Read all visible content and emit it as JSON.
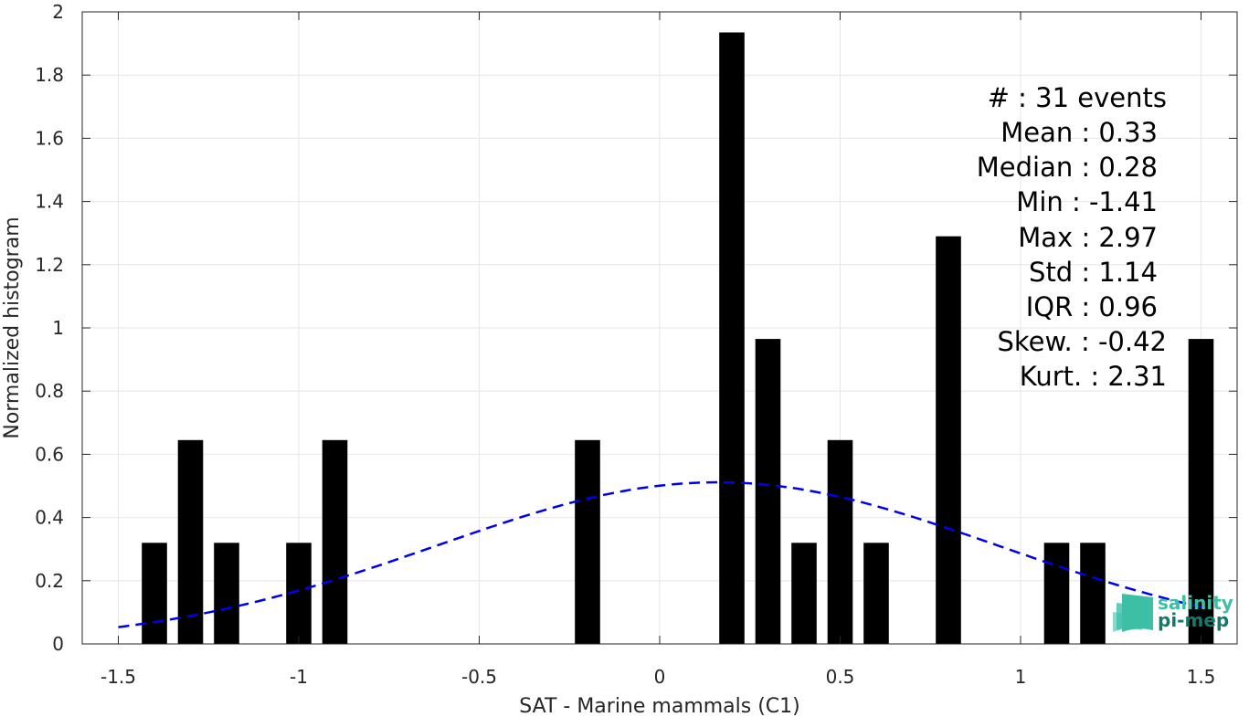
{
  "chart_data": {
    "type": "bar",
    "xlabel": "SAT - Marine mammals (C1)",
    "ylabel": "Normalized histogram",
    "xlim": [
      -1.6,
      1.6
    ],
    "ylim": [
      0,
      2
    ],
    "grid": true,
    "x_ticks": [
      -1.5,
      -1,
      -0.5,
      0,
      0.5,
      1,
      1.5
    ],
    "x_tick_labels": [
      "-1.5",
      "-1",
      "-0.5",
      "0",
      "0.5",
      "1",
      "1.5"
    ],
    "y_ticks": [
      0,
      0.2,
      0.4,
      0.6,
      0.8,
      1,
      1.2,
      1.4,
      1.6,
      1.8,
      2
    ],
    "y_tick_labels": [
      "0",
      "0.2",
      "0.4",
      "0.6",
      "0.8",
      "1",
      "1.2",
      "1.4",
      "1.6",
      "1.8",
      "2"
    ],
    "bar_color": "#000000",
    "bin_width": 0.1,
    "bars": [
      {
        "x": -1.4,
        "y": 0.32
      },
      {
        "x": -1.3,
        "y": 0.645
      },
      {
        "x": -1.2,
        "y": 0.32
      },
      {
        "x": -1.0,
        "y": 0.32
      },
      {
        "x": -0.9,
        "y": 0.645
      },
      {
        "x": -0.2,
        "y": 0.645
      },
      {
        "x": 0.2,
        "y": 1.935
      },
      {
        "x": 0.3,
        "y": 0.965
      },
      {
        "x": 0.4,
        "y": 0.32
      },
      {
        "x": 0.5,
        "y": 0.645
      },
      {
        "x": 0.6,
        "y": 0.32
      },
      {
        "x": 0.8,
        "y": 1.29
      },
      {
        "x": 1.1,
        "y": 0.32
      },
      {
        "x": 1.2,
        "y": 0.32
      },
      {
        "x": 1.5,
        "y": 0.965
      }
    ],
    "fit_curve": {
      "style": "dashed",
      "color": "#0000ee",
      "distribution": "normal",
      "mean": 0.16,
      "std": 0.78,
      "x_range": [
        -1.5,
        1.5
      ]
    },
    "stats_lines": [
      "#  : 31 events",
      "Mean : 0.33",
      "Median : 0.28",
      "Min : -1.41",
      "Max : 2.97",
      "Std : 1.14",
      "IQR : 0.96",
      "Skew. : -0.42",
      "Kurt. : 2.31"
    ]
  },
  "logo": {
    "line1": "salinity",
    "line2": "pi-mep",
    "color_light": "#3dbfa6",
    "color_dark": "#137a6b"
  }
}
